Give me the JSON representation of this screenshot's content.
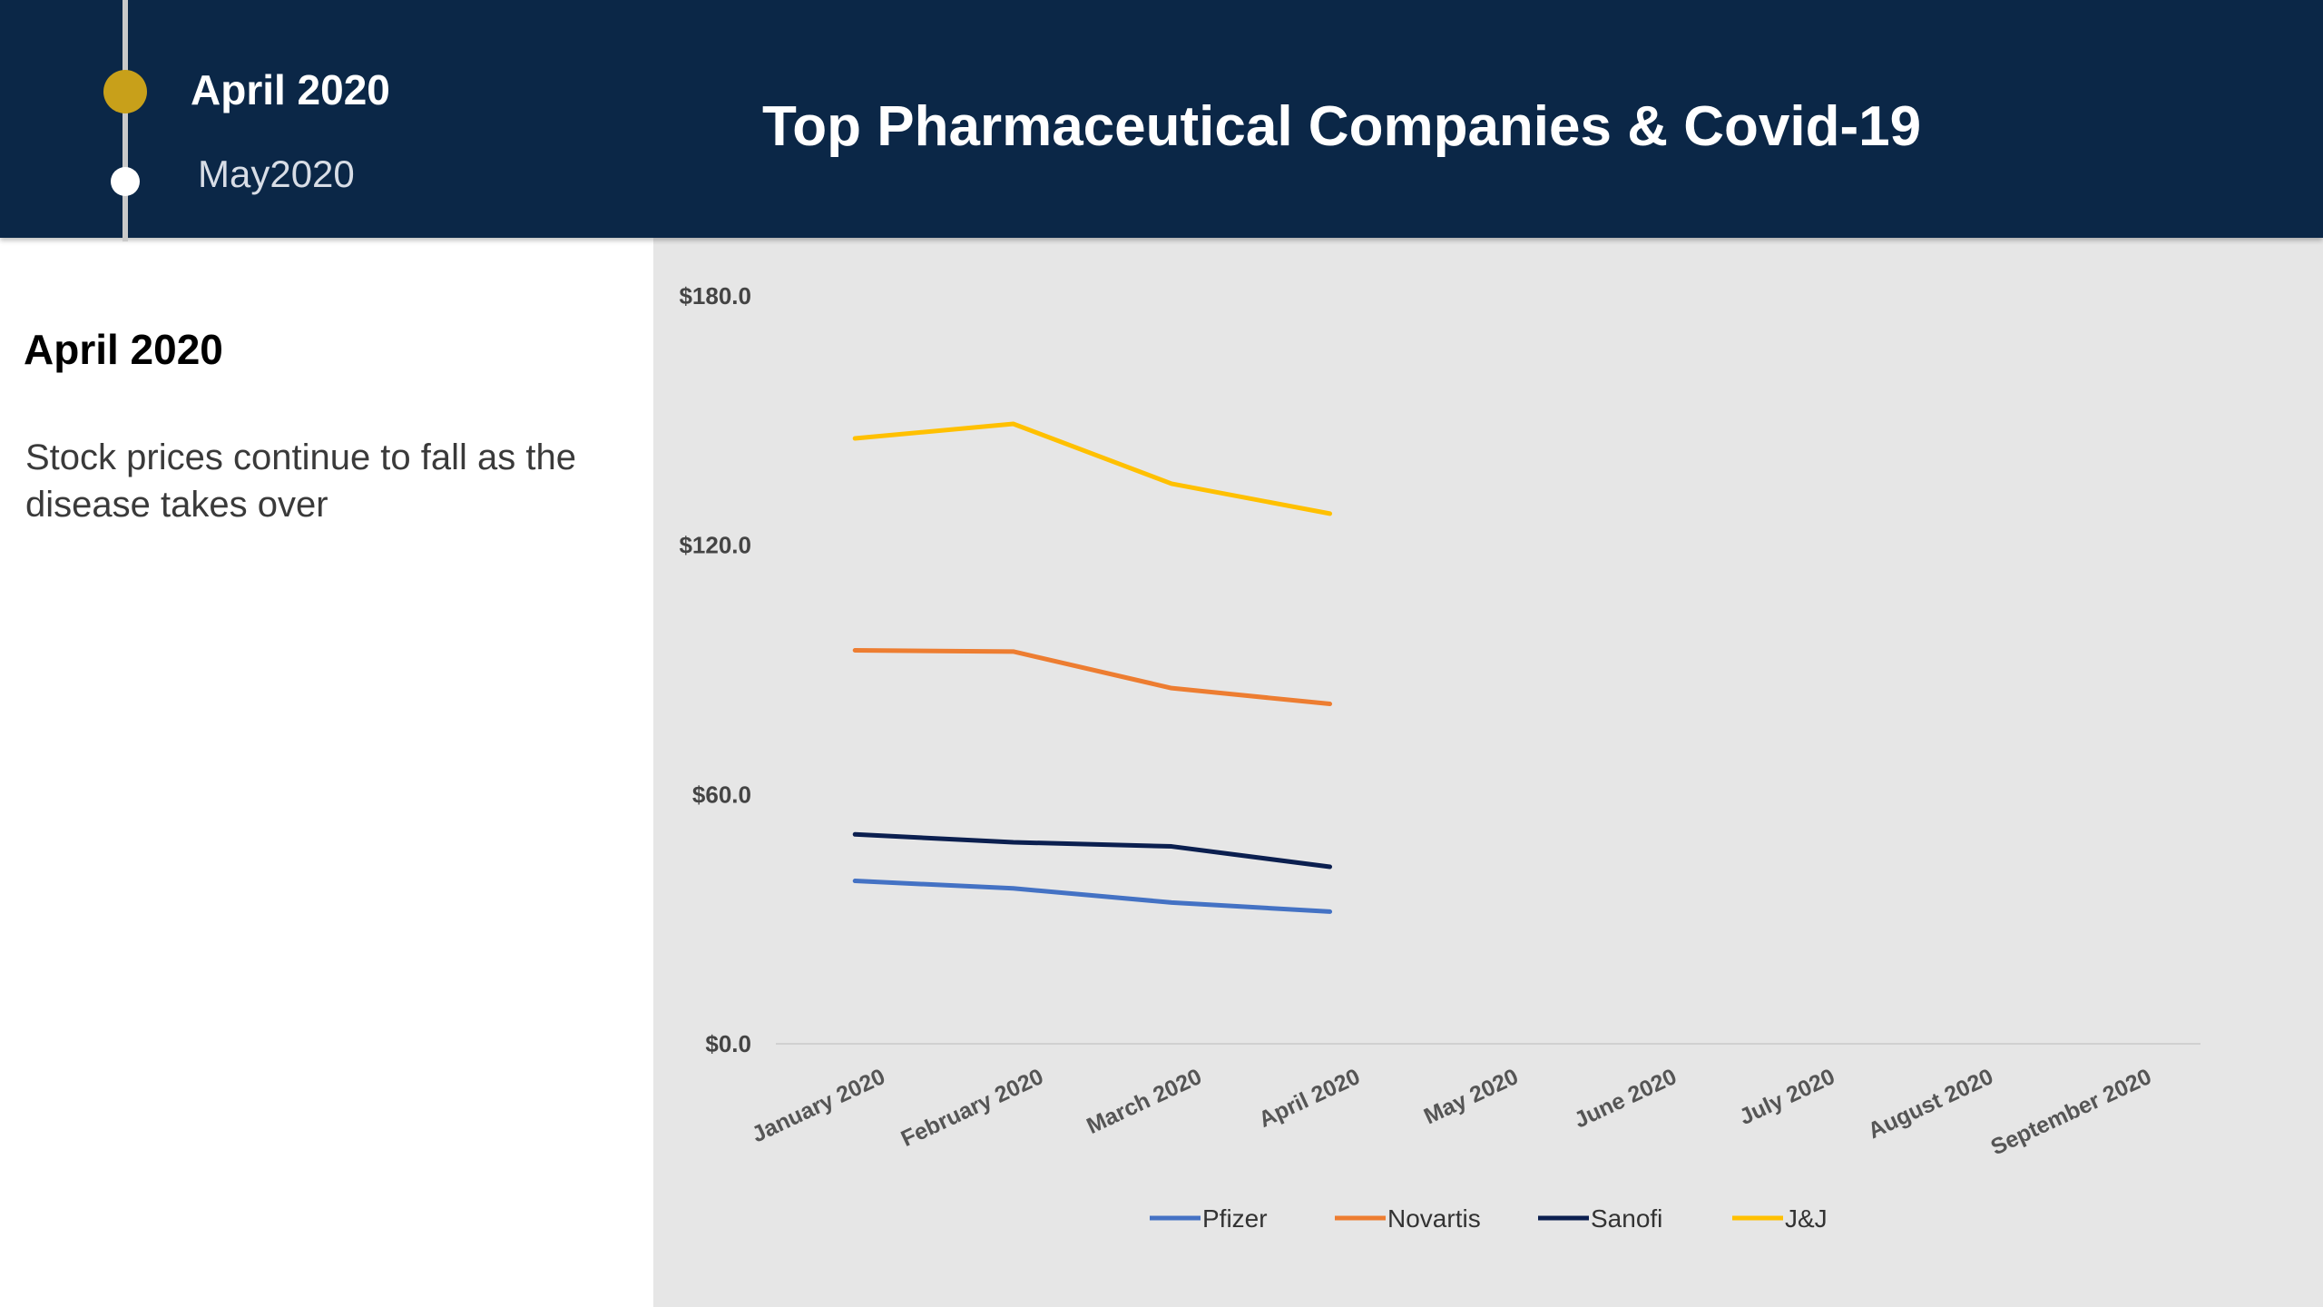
{
  "header": {
    "timeline": {
      "current": "April 2020",
      "next": "May2020"
    },
    "title": "Top Pharmaceutical Companies & Covid-19"
  },
  "sidebar": {
    "heading": "April 2020",
    "text": "Stock prices continue to fall as the disease takes over"
  },
  "colors": {
    "header_bg": "#0b2747",
    "timeline_active": "#c8a01a",
    "chart_bg": "#e6e6e6"
  },
  "chart_data": {
    "type": "line",
    "title": "",
    "xlabel": "",
    "ylabel": "",
    "categories": [
      "January 2020",
      "February 2020",
      "March 2020",
      "April 2020",
      "May 2020",
      "June 2020",
      "July 2020",
      "August 2020",
      "September 2020"
    ],
    "y_ticks": [
      "$180.0",
      "$120.0",
      "$60.0",
      "$0.0"
    ],
    "ylim": [
      0,
      180
    ],
    "grid": false,
    "legend": "bottom",
    "series": [
      {
        "name": "Pfizer",
        "color": "#4472c4",
        "values": [
          39.2,
          37.4,
          34.0,
          31.8,
          null,
          null,
          null,
          null,
          null
        ]
      },
      {
        "name": "Novartis",
        "color": "#ed7d31",
        "values": [
          94.7,
          94.4,
          85.6,
          81.8,
          null,
          null,
          null,
          null,
          null
        ]
      },
      {
        "name": "Sanofi",
        "color": "#0b1f4f",
        "values": [
          50.4,
          48.5,
          47.5,
          42.6,
          null,
          null,
          null,
          null,
          null
        ]
      },
      {
        "name": "J&J",
        "color": "#ffc000",
        "values": [
          145.7,
          149.2,
          134.8,
          127.6,
          null,
          null,
          null,
          null,
          null
        ]
      }
    ]
  }
}
